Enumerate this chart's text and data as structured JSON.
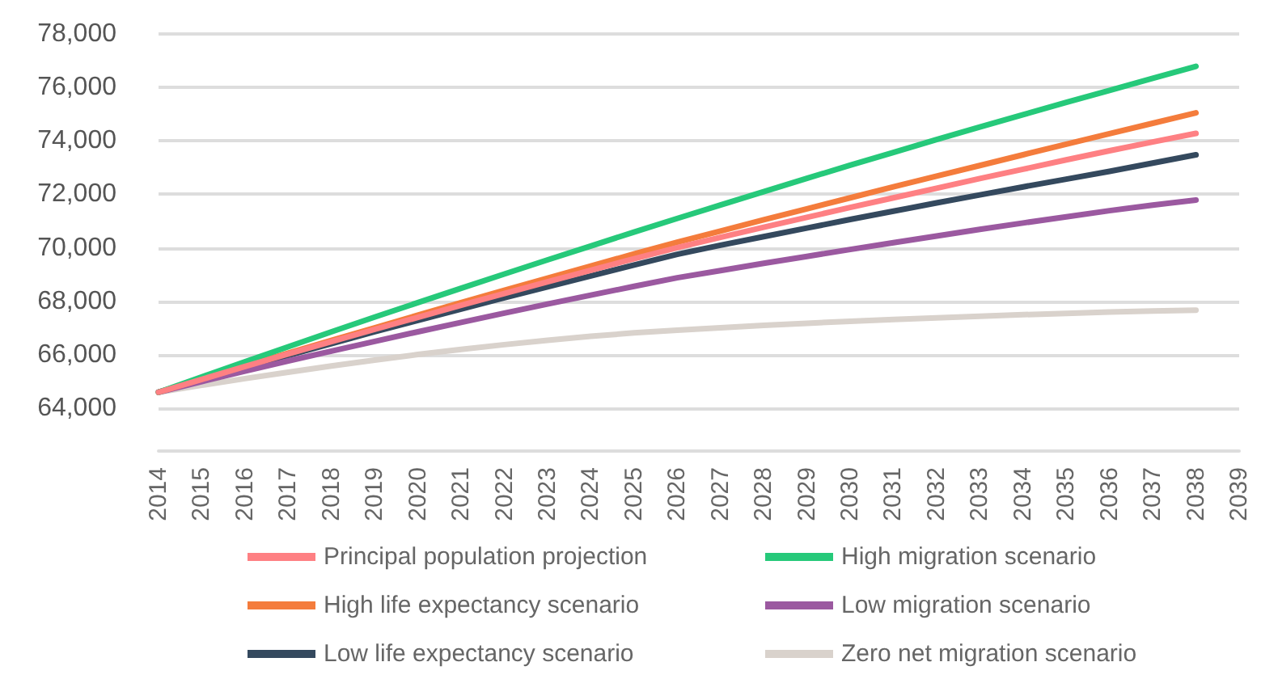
{
  "chart_data": {
    "type": "line",
    "categories": [
      "2014",
      "2015",
      "2016",
      "2017",
      "2018",
      "2019",
      "2020",
      "2021",
      "2022",
      "2023",
      "2024",
      "2025",
      "2026",
      "2027",
      "2028",
      "2029",
      "2030",
      "2031",
      "2032",
      "2033",
      "2034",
      "2035",
      "2036",
      "2037",
      "2038",
      "2039"
    ],
    "series": [
      {
        "name": "Principal population projection",
        "color": "#fe8083",
        "values": [
          64600,
          65080,
          65560,
          66030,
          66490,
          66950,
          67400,
          67850,
          68290,
          68730,
          69160,
          69590,
          70010,
          70390,
          70770,
          71140,
          71510,
          71870,
          72230,
          72590,
          72940,
          73290,
          73630,
          73960,
          74280,
          null
        ]
      },
      {
        "name": "High migration scenario",
        "color": "#26c97a",
        "values": [
          64600,
          65170,
          65740,
          66300,
          66860,
          67410,
          67950,
          68490,
          69020,
          69550,
          70070,
          70590,
          71100,
          71600,
          72100,
          72600,
          73090,
          73570,
          74050,
          74520,
          74980,
          75440,
          75890,
          76340,
          76790,
          null
        ]
      },
      {
        "name": "High life expectancy scenario",
        "color": "#f47c3c",
        "values": [
          64600,
          65090,
          65580,
          66060,
          66540,
          67010,
          67480,
          67950,
          68410,
          68870,
          69320,
          69770,
          70210,
          70630,
          71050,
          71460,
          71870,
          72280,
          72680,
          73080,
          73480,
          73880,
          74270,
          74660,
          75050,
          null
        ]
      },
      {
        "name": "Low migration scenario",
        "color": "#9b59a0",
        "values": [
          64600,
          65000,
          65390,
          65770,
          66140,
          66500,
          66860,
          67210,
          67560,
          67900,
          68230,
          68560,
          68880,
          69150,
          69420,
          69680,
          69940,
          70190,
          70440,
          70690,
          70930,
          71160,
          71390,
          71600,
          71790,
          null
        ]
      },
      {
        "name": "Low life expectancy scenario",
        "color": "#34495e",
        "values": [
          64600,
          65070,
          65530,
          65980,
          66420,
          66860,
          67290,
          67710,
          68130,
          68540,
          68950,
          69360,
          69760,
          70100,
          70420,
          70740,
          71060,
          71370,
          71680,
          71980,
          72280,
          72570,
          72860,
          73170,
          73480,
          null
        ]
      },
      {
        "name": "Zero net migration scenario",
        "color": "#d9d2cc",
        "values": [
          64600,
          64860,
          65110,
          65350,
          65580,
          65800,
          66010,
          66200,
          66380,
          66540,
          66690,
          66820,
          66920,
          67010,
          67100,
          67180,
          67250,
          67320,
          67380,
          67440,
          67500,
          67550,
          67600,
          67640,
          67670,
          null
        ]
      }
    ],
    "ylim": [
      62400,
      78000
    ],
    "yticks": [
      {
        "value": 64000,
        "label": "64,000"
      },
      {
        "value": 66000,
        "label": "66,000"
      },
      {
        "value": 68000,
        "label": "68,000"
      },
      {
        "value": 70000,
        "label": "70,000"
      },
      {
        "value": 72000,
        "label": "72,000"
      },
      {
        "value": 74000,
        "label": "74,000"
      },
      {
        "value": 76000,
        "label": "76,000"
      },
      {
        "value": 78000,
        "label": "78,000"
      }
    ],
    "grid": "y",
    "legend": "bottom",
    "marker": "none",
    "line_style": "solid"
  }
}
